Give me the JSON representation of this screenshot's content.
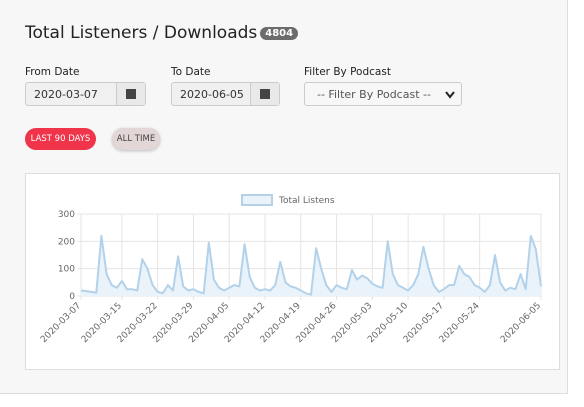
{
  "header": {
    "title": "Total Listeners / Downloads",
    "badge": "4804"
  },
  "filters": {
    "from_label": "From Date",
    "from_value": "2020-03-07",
    "to_label": "To Date",
    "to_value": "2020-06-05",
    "podcast_label": "Filter By Podcast",
    "podcast_value": "-- Filter By Podcast --"
  },
  "buttons": {
    "last_90": "LAST 90 DAYS",
    "all_time": "ALL TIME"
  },
  "chart_data": {
    "type": "line",
    "legend": "Total Listens",
    "color": "#b3d2ea",
    "fill": "#eaf3fa",
    "categories": [
      "2020-03-07",
      null,
      null,
      null,
      null,
      null,
      null,
      null,
      "2020-03-15",
      null,
      null,
      null,
      null,
      null,
      null,
      "2020-03-22",
      null,
      null,
      null,
      null,
      null,
      null,
      "2020-03-29",
      null,
      null,
      null,
      null,
      null,
      null,
      "2020-04-05",
      null,
      null,
      null,
      null,
      null,
      null,
      "2020-04-12",
      null,
      null,
      null,
      null,
      null,
      null,
      "2020-04-19",
      null,
      null,
      null,
      null,
      null,
      null,
      "2020-04-26",
      null,
      null,
      null,
      null,
      null,
      null,
      "2020-05-03",
      null,
      null,
      null,
      null,
      null,
      null,
      "2020-05-10",
      null,
      null,
      null,
      null,
      null,
      null,
      "2020-05-17",
      null,
      null,
      null,
      null,
      null,
      null,
      "2020-05-24",
      null,
      null,
      null,
      null,
      null,
      null,
      null,
      null,
      null,
      null,
      null,
      "2020-06-05"
    ],
    "values": [
      20,
      18,
      15,
      12,
      220,
      80,
      40,
      30,
      55,
      25,
      25,
      20,
      135,
      100,
      40,
      15,
      10,
      40,
      20,
      145,
      35,
      20,
      25,
      15,
      10,
      195,
      60,
      30,
      20,
      30,
      40,
      35,
      190,
      70,
      30,
      20,
      25,
      20,
      40,
      125,
      50,
      35,
      30,
      20,
      10,
      5,
      175,
      100,
      40,
      15,
      40,
      30,
      25,
      95,
      60,
      75,
      65,
      45,
      35,
      30,
      200,
      80,
      40,
      30,
      20,
      40,
      80,
      180,
      100,
      40,
      15,
      25,
      40,
      40,
      110,
      80,
      70,
      40,
      30,
      15,
      40,
      150,
      50,
      20,
      30,
      25,
      80,
      25,
      220,
      170,
      35
    ],
    "ylim": [
      0,
      300
    ],
    "yticks": [
      0,
      100,
      200,
      300
    ],
    "grid": true
  }
}
